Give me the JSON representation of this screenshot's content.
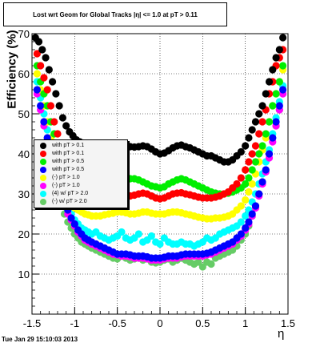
{
  "header": {
    "title": "Lost wrt Geom for Global Tracks |η| <= 1.0 at pT > 0.11",
    "timestamp": "Tue Jan 29 15:10:03 2013"
  },
  "chart_data": {
    "type": "scatter",
    "title": "Lost wrt Geom for Global Tracks |η| <= 1.0 at pT > 0.11",
    "xlabel": "η",
    "ylabel": "Efficiency (%)",
    "xlim": [
      -1.5,
      1.5
    ],
    "ylim": [
      0,
      70
    ],
    "xticks": [
      -1.5,
      -1,
      -0.5,
      0,
      0.5,
      1,
      1.5
    ],
    "yticks": [
      10,
      20,
      30,
      40,
      50,
      60,
      70
    ],
    "grid": true,
    "legend_position": "middle-left",
    "series": [
      {
        "name": "with pT > 0.1",
        "color": "#000000",
        "x": [
          -1.46,
          -1.42,
          -1.38,
          -1.34,
          -1.3,
          -1.26,
          -1.22,
          -1.18,
          -1.14,
          -1.1,
          -1.06,
          -1.02,
          -0.98,
          -0.94,
          -0.9,
          -0.85,
          -0.8,
          -0.75,
          -0.7,
          -0.65,
          -0.6,
          -0.55,
          -0.5,
          -0.45,
          -0.4,
          -0.35,
          -0.3,
          -0.25,
          -0.2,
          -0.15,
          -0.1,
          -0.05,
          0,
          0.05,
          0.1,
          0.15,
          0.2,
          0.25,
          0.3,
          0.35,
          0.4,
          0.45,
          0.5,
          0.55,
          0.6,
          0.65,
          0.7,
          0.75,
          0.8,
          0.85,
          0.9,
          0.95,
          1,
          1.04,
          1.08,
          1.12,
          1.16,
          1.2,
          1.24,
          1.28,
          1.32,
          1.36,
          1.4,
          1.44
        ],
        "y": [
          69,
          68,
          66,
          64,
          61,
          58,
          55,
          52,
          49,
          47,
          45.5,
          44.5,
          43.5,
          43,
          42.7,
          42.5,
          42.2,
          42,
          42,
          42,
          42.2,
          42.5,
          42.5,
          42.2,
          42,
          41.8,
          41.7,
          41.8,
          42,
          41.8,
          41.2,
          40.5,
          40,
          40.2,
          40.8,
          41.5,
          42,
          42.2,
          41.8,
          41.5,
          41,
          40.5,
          40,
          39.5,
          39.5,
          39,
          38.5,
          38,
          38,
          38.5,
          39.5,
          40.5,
          42,
          44,
          46,
          48,
          50,
          52,
          55,
          58,
          61,
          64,
          66,
          69
        ]
      },
      {
        "name": "with pT > 0.1",
        "color": "#ff0000",
        "x": [
          -1.44,
          -1.4,
          -1.36,
          -1.32,
          -1.28,
          -1.24,
          -1.2,
          -1.16,
          -1.12,
          -1.08,
          -1.04,
          -1,
          -0.96,
          -0.92,
          -0.88,
          -0.84,
          -0.8,
          -0.75,
          -0.7,
          -0.65,
          -0.6,
          -0.55,
          -0.5,
          -0.45,
          -0.4,
          -0.35,
          -0.3,
          -0.25,
          -0.2,
          -0.15,
          -0.1,
          -0.05,
          0,
          0.05,
          0.1,
          0.15,
          0.2,
          0.25,
          0.3,
          0.35,
          0.4,
          0.45,
          0.5,
          0.55,
          0.6,
          0.65,
          0.7,
          0.75,
          0.8,
          0.85,
          0.9,
          0.95,
          1,
          1.04,
          1.08,
          1.12,
          1.16,
          1.2,
          1.24,
          1.28,
          1.32,
          1.36,
          1.4,
          1.44
        ],
        "y": [
          65,
          62,
          59,
          56,
          52,
          48,
          45,
          42,
          39,
          37,
          35,
          33.5,
          32.5,
          31.5,
          31,
          30.5,
          30,
          29.5,
          29.2,
          29,
          29.2,
          29.5,
          30,
          29.8,
          29.5,
          29.5,
          29.7,
          30,
          30.2,
          30,
          29.5,
          29,
          28.8,
          29,
          29.5,
          30,
          30.2,
          30.3,
          30,
          29.8,
          29.5,
          29.2,
          29,
          29,
          29,
          29.2,
          29.5,
          30,
          30.5,
          31.5,
          32.5,
          34,
          36,
          38,
          40,
          42,
          45,
          48,
          51,
          55,
          58,
          62,
          64,
          66
        ]
      },
      {
        "name": "with pT > 0.5",
        "color": "#00ee00",
        "x": [
          -1.44,
          -1.4,
          -1.36,
          -1.32,
          -1.28,
          -1.24,
          -1.2,
          -1.16,
          -1.12,
          -1.08,
          -1.04,
          -1,
          -0.96,
          -0.92,
          -0.88,
          -0.84,
          -0.8,
          -0.75,
          -0.7,
          -0.65,
          -0.6,
          -0.55,
          -0.5,
          -0.45,
          -0.4,
          -0.35,
          -0.3,
          -0.25,
          -0.2,
          -0.15,
          -0.1,
          -0.05,
          0,
          0.05,
          0.1,
          0.15,
          0.2,
          0.25,
          0.3,
          0.35,
          0.4,
          0.45,
          0.5,
          0.55,
          0.6,
          0.65,
          0.7,
          0.75,
          0.8,
          0.85,
          0.9,
          0.95,
          1,
          1.04,
          1.08,
          1.12,
          1.16,
          1.2,
          1.24,
          1.28,
          1.32,
          1.36,
          1.4,
          1.44
        ],
        "y": [
          62,
          58,
          55,
          52,
          48,
          45,
          42,
          39,
          37,
          35,
          33.5,
          32,
          31,
          30.5,
          30,
          29.8,
          29.8,
          30,
          30.5,
          31,
          31.5,
          32,
          32.5,
          33,
          33.5,
          33.8,
          33.8,
          33.5,
          33,
          32.5,
          32,
          31.8,
          31.5,
          31.8,
          32.5,
          33,
          33.5,
          33.8,
          33.5,
          33,
          32.5,
          32,
          31.5,
          31,
          30.5,
          30.2,
          30,
          30,
          30.2,
          30.5,
          31,
          31.5,
          32.5,
          34,
          36,
          38,
          40,
          42,
          45,
          48,
          52,
          55,
          58,
          62
        ]
      },
      {
        "name": "with pT > 0.5",
        "color": "#0000ff",
        "x": [
          -1.44,
          -1.4,
          -1.36,
          -1.32,
          -1.28,
          -1.24,
          -1.2,
          -1.16,
          -1.12,
          -1.08,
          -1.04,
          -1,
          -0.96,
          -0.92,
          -0.88,
          -0.84,
          -0.8,
          -0.75,
          -0.7,
          -0.65,
          -0.6,
          -0.55,
          -0.5,
          -0.45,
          -0.4,
          -0.35,
          -0.3,
          -0.25,
          -0.2,
          -0.15,
          -0.1,
          -0.05,
          0,
          0.05,
          0.1,
          0.15,
          0.2,
          0.25,
          0.3,
          0.35,
          0.4,
          0.45,
          0.5,
          0.55,
          0.6,
          0.65,
          0.7,
          0.75,
          0.8,
          0.85,
          0.9,
          0.95,
          1,
          1.04,
          1.08,
          1.12,
          1.16,
          1.2,
          1.24,
          1.28,
          1.32,
          1.36,
          1.4,
          1.44
        ],
        "y": [
          56,
          52,
          48,
          44,
          40,
          36,
          33,
          30,
          28,
          26,
          24,
          22.5,
          21,
          20,
          19,
          18.5,
          18,
          17.5,
          17,
          16.5,
          16,
          15.5,
          15,
          15,
          15,
          14.8,
          14.5,
          14.5,
          14.5,
          14.3,
          14,
          14,
          14,
          14.2,
          14.5,
          14.5,
          14.5,
          14.8,
          15,
          15,
          15,
          15,
          15,
          15.2,
          15.5,
          16,
          16.5,
          17,
          17.5,
          18,
          19,
          20,
          21.5,
          23,
          25,
          27,
          30,
          33,
          36,
          40,
          44,
          48,
          52,
          56
        ]
      },
      {
        "name": "(-) pT > 1.0",
        "color": "#ffff00",
        "x": [
          -1.44,
          -1.4,
          -1.36,
          -1.32,
          -1.28,
          -1.24,
          -1.2,
          -1.16,
          -1.12,
          -1.08,
          -1.04,
          -1,
          -0.96,
          -0.92,
          -0.88,
          -0.84,
          -0.8,
          -0.75,
          -0.7,
          -0.65,
          -0.6,
          -0.55,
          -0.5,
          -0.45,
          -0.4,
          -0.35,
          -0.3,
          -0.25,
          -0.2,
          -0.15,
          -0.1,
          -0.05,
          0,
          0.05,
          0.1,
          0.15,
          0.2,
          0.25,
          0.3,
          0.35,
          0.4,
          0.45,
          0.5,
          0.55,
          0.6,
          0.65,
          0.7,
          0.75,
          0.8,
          0.85,
          0.9,
          0.95,
          1,
          1.04,
          1.08,
          1.12,
          1.16,
          1.2,
          1.24,
          1.28,
          1.32,
          1.36,
          1.4,
          1.44
        ],
        "y": [
          60,
          56,
          52,
          48,
          44,
          40,
          37,
          34,
          31,
          29,
          27.5,
          26.5,
          26,
          25.5,
          25,
          24.8,
          24.5,
          24.5,
          24.5,
          24.8,
          25,
          25.2,
          25.5,
          25.5,
          25.3,
          25,
          25,
          25.2,
          25.5,
          25.5,
          25.2,
          25,
          25,
          25,
          25.3,
          25.5,
          25.5,
          25.3,
          25,
          24.8,
          24.5,
          24.2,
          24,
          23.8,
          23.8,
          24,
          24,
          24.2,
          24.5,
          25,
          26,
          27,
          28.5,
          30.5,
          32.5,
          35,
          38,
          41,
          44,
          48,
          52,
          55,
          58,
          61
        ]
      },
      {
        "name": "(-) pT > 1.0",
        "color": "#ff00ff",
        "x": [
          -1.44,
          -1.4,
          -1.36,
          -1.32,
          -1.28,
          -1.24,
          -1.2,
          -1.16,
          -1.12,
          -1.08,
          -1.04,
          -1,
          -0.96,
          -0.92,
          -0.88,
          -0.84,
          -0.8,
          -0.75,
          -0.7,
          -0.65,
          -0.6,
          -0.55,
          -0.5,
          -0.45,
          -0.4,
          -0.35,
          -0.3,
          -0.25,
          -0.2,
          -0.15,
          -0.1,
          -0.05,
          0,
          0.05,
          0.1,
          0.15,
          0.2,
          0.25,
          0.3,
          0.35,
          0.4,
          0.45,
          0.5,
          0.55,
          0.6,
          0.65,
          0.7,
          0.75,
          0.8,
          0.85,
          0.9,
          0.95,
          1,
          1.04,
          1.08,
          1.12,
          1.16,
          1.2,
          1.24,
          1.28,
          1.32,
          1.36,
          1.4,
          1.44
        ],
        "y": [
          55,
          51,
          47,
          43,
          39,
          35,
          32,
          29,
          27,
          25,
          23.5,
          22,
          20.5,
          19.5,
          18.5,
          18,
          17.5,
          17,
          16.5,
          16,
          15.5,
          15,
          14.8,
          14.5,
          14.5,
          14.3,
          14,
          14,
          14,
          13.8,
          13.5,
          13.5,
          13.5,
          13.8,
          14,
          14,
          14,
          14.3,
          14.5,
          14.5,
          14.5,
          14.5,
          14.5,
          14.8,
          15,
          15.5,
          16,
          16.5,
          17,
          17.5,
          18.5,
          19.5,
          21,
          22.5,
          24.5,
          26.5,
          29.5,
          32.5,
          35.5,
          39,
          43,
          47,
          51,
          55
        ]
      },
      {
        "name": "(4) w/ pT > 2.0",
        "color": "#00ffff",
        "x": [
          -1.44,
          -1.4,
          -1.36,
          -1.32,
          -1.28,
          -1.24,
          -1.2,
          -1.16,
          -1.12,
          -1.08,
          -1.04,
          -1,
          -0.96,
          -0.92,
          -0.88,
          -0.84,
          -0.8,
          -0.75,
          -0.7,
          -0.65,
          -0.6,
          -0.55,
          -0.5,
          -0.45,
          -0.4,
          -0.35,
          -0.3,
          -0.25,
          -0.2,
          -0.15,
          -0.1,
          -0.05,
          0,
          0.05,
          0.1,
          0.15,
          0.2,
          0.25,
          0.3,
          0.35,
          0.4,
          0.45,
          0.5,
          0.55,
          0.6,
          0.65,
          0.7,
          0.75,
          0.8,
          0.85,
          0.9,
          0.95,
          1,
          1.04,
          1.08,
          1.12,
          1.16,
          1.2,
          1.24,
          1.28,
          1.32,
          1.36,
          1.4,
          1.44
        ],
        "y": [
          58,
          54,
          50,
          46,
          42,
          38,
          34,
          31,
          28.5,
          26.5,
          25,
          23.5,
          22.5,
          21.5,
          21,
          20.5,
          20,
          20.5,
          19.5,
          19,
          18.5,
          19,
          19.5,
          20.5,
          19,
          18.5,
          19,
          20,
          18,
          18.5,
          19.5,
          18,
          17.5,
          19,
          18,
          17.5,
          17.5,
          18,
          17.5,
          17.5,
          17,
          17.5,
          18,
          19,
          18.5,
          19,
          20,
          20.5,
          21,
          21.5,
          22,
          23,
          24.5,
          26,
          28,
          30,
          32.5,
          35,
          38,
          41,
          45,
          49,
          53,
          57
        ]
      },
      {
        "name": "(-) w/ pT > 2.0",
        "color": "#66cc66",
        "x": [
          -1.44,
          -1.4,
          -1.36,
          -1.32,
          -1.28,
          -1.24,
          -1.2,
          -1.16,
          -1.12,
          -1.08,
          -1.04,
          -1,
          -0.96,
          -0.92,
          -0.88,
          -0.84,
          -0.8,
          -0.75,
          -0.7,
          -0.65,
          -0.6,
          -0.55,
          -0.5,
          -0.45,
          -0.4,
          -0.35,
          -0.3,
          -0.25,
          -0.2,
          -0.15,
          -0.1,
          -0.05,
          0,
          0.05,
          0.1,
          0.15,
          0.2,
          0.25,
          0.3,
          0.35,
          0.4,
          0.45,
          0.5,
          0.55,
          0.6,
          0.65,
          0.7,
          0.75,
          0.8,
          0.85,
          0.9,
          0.95,
          1,
          1.04,
          1.08,
          1.12,
          1.16,
          1.2,
          1.24,
          1.28,
          1.32,
          1.36,
          1.4,
          1.44
        ],
        "y": [
          56,
          52,
          48,
          44,
          40,
          36,
          32,
          28,
          25,
          23,
          21.5,
          20,
          19,
          18,
          17.5,
          17,
          16.5,
          16,
          15.5,
          15,
          14.5,
          14,
          13.8,
          14.5,
          14,
          13.5,
          13.8,
          14,
          13.5,
          13.8,
          13,
          12.8,
          13,
          13.5,
          13.8,
          13,
          13.5,
          14,
          13.5,
          13,
          12.5,
          13,
          11.8,
          13,
          12.5,
          14,
          14.5,
          15,
          15.5,
          16,
          17,
          18.5,
          20,
          22,
          24.5,
          27,
          30,
          33,
          36,
          40,
          44,
          47,
          51,
          55
        ]
      }
    ]
  }
}
